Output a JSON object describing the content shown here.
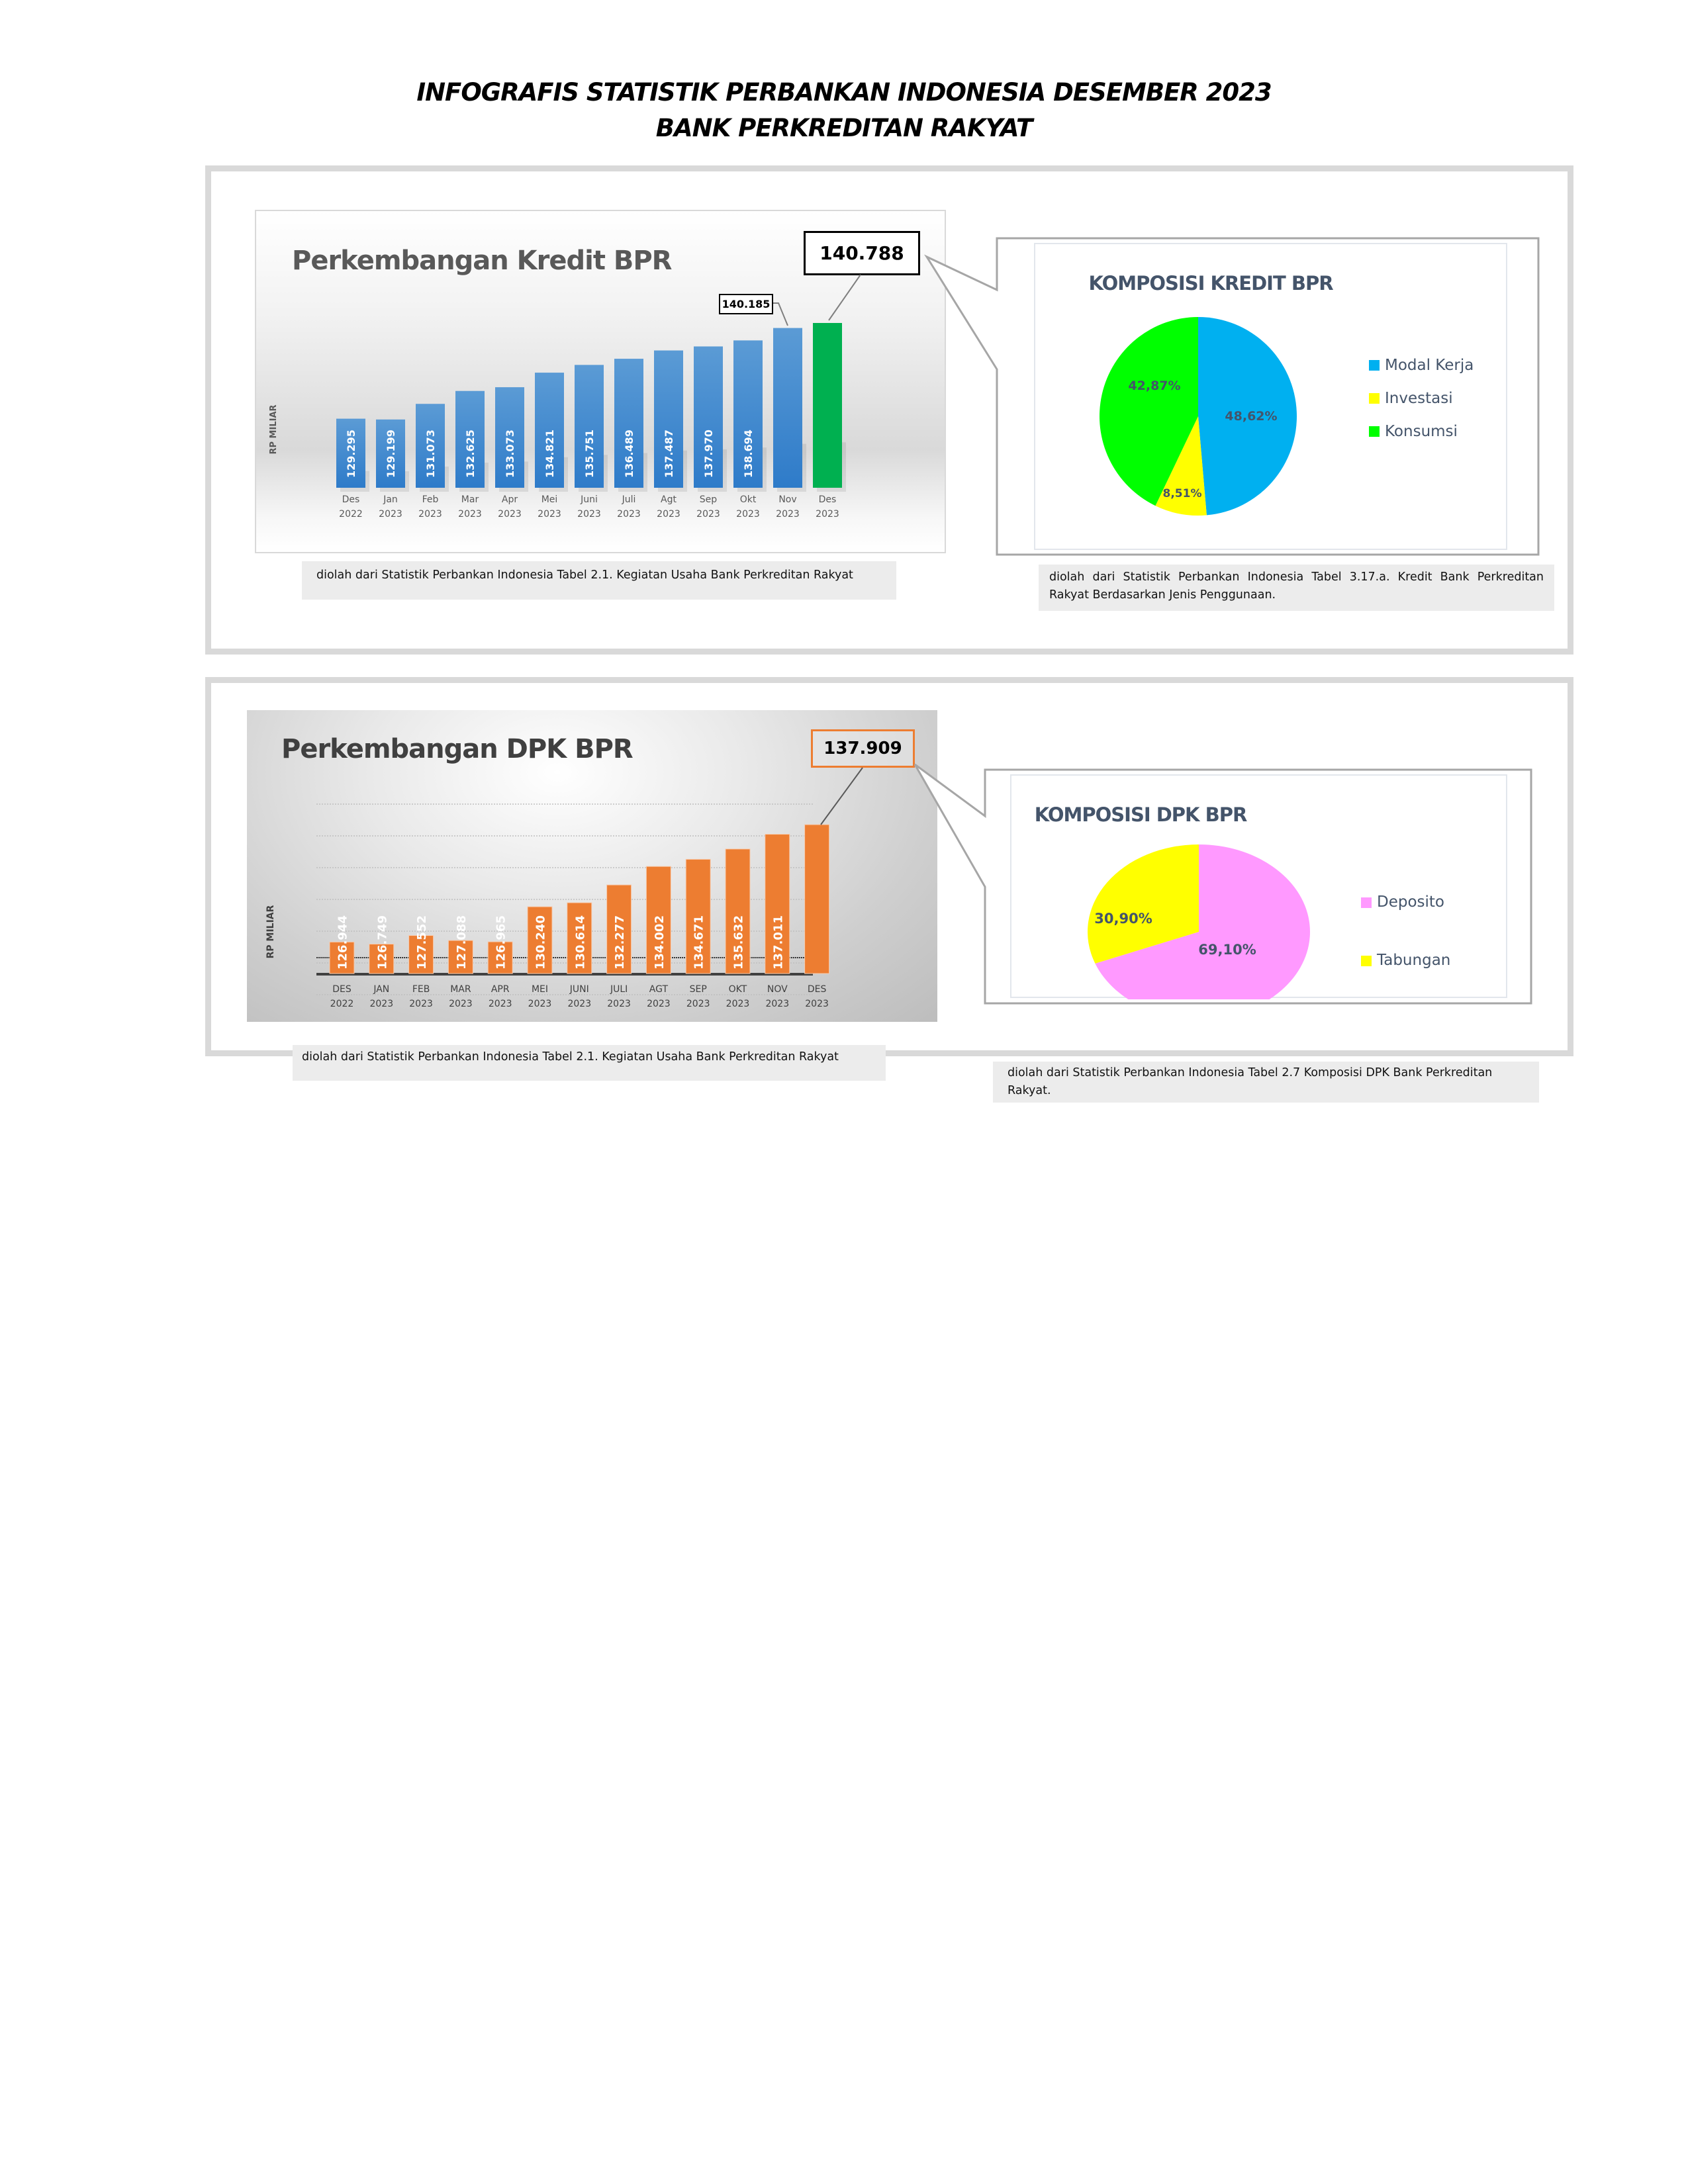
{
  "header": {
    "title_line1": "INFOGRAFIS STATISTIK PERBANKAN INDONESIA DESEMBER 2023",
    "title_line2": "BANK PERKREDITAN RAKYAT"
  },
  "kredit_panel": {
    "bar_chart": {
      "title": "Perkembangan Kredit BPR",
      "ylabel": "RP MILIAR",
      "highlight_value": "140.788",
      "prev_value": "140.185",
      "caption": "diolah dari Statistik Perbankan Indonesia Tabel 2.1. Kegiatan Usaha Bank Perkreditan Rakyat",
      "colors": {
        "bar": "#4a8ad4",
        "highlight": "#00b050"
      }
    },
    "pie_chart": {
      "title": "KOMPOSISI KREDIT BPR",
      "legend": [
        {
          "label": "Modal Kerja",
          "color": "#00b0f0",
          "pct": "48,62%"
        },
        {
          "label": "Investasi",
          "color": "#ffff00",
          "pct": "8,51%"
        },
        {
          "label": "Konsumsi",
          "color": "#00ff00",
          "pct": "42,87%"
        }
      ],
      "caption": "diolah dari Statistik Perbankan Indonesia Tabel 3.17.a. Kredit Bank Perkreditan Rakyat Berdasarkan Jenis Penggunaan."
    }
  },
  "dpk_panel": {
    "bar_chart": {
      "title": "Perkembangan DPK BPR",
      "ylabel": "RP MILIAR",
      "highlight_value": "137.909",
      "caption": "diolah dari Statistik Perbankan Indonesia Tabel 2.1. Kegiatan Usaha Bank Perkreditan Rakyat",
      "colors": {
        "bar": "#ed7d31"
      }
    },
    "pie_chart": {
      "title": "KOMPOSISI DPK BPR",
      "legend": [
        {
          "label": "Deposito",
          "color": "#ff99ff",
          "pct": "69,10%"
        },
        {
          "label": "Tabungan",
          "color": "#ffff00",
          "pct": "30,90%"
        }
      ],
      "caption": "diolah dari Statistik Perbankan Indonesia Tabel 2.7 Komposisi DPK Bank Perkreditan Rakyat."
    }
  },
  "chart_data": [
    {
      "type": "bar",
      "title": "Perkembangan Kredit BPR",
      "xlabel": "",
      "ylabel": "RP MILIAR",
      "categories": [
        "Des 2022",
        "Jan 2023",
        "Feb 2023",
        "Mar 2023",
        "Apr 2023",
        "Mei 2023",
        "Juni 2023",
        "Juli 2023",
        "Agt 2023",
        "Sep 2023",
        "Okt 2023",
        "Nov 2023",
        "Des 2023"
      ],
      "cat_line1": [
        "Des",
        "Jan",
        "Feb",
        "Mar",
        "Apr",
        "Mei",
        "Juni",
        "Juli",
        "Agt",
        "Sep",
        "Okt",
        "Nov",
        "Des"
      ],
      "cat_line2": [
        "2022",
        "2023",
        "2023",
        "2023",
        "2023",
        "2023",
        "2023",
        "2023",
        "2023",
        "2023",
        "2023",
        "2023",
        "2023"
      ],
      "values": [
        129295,
        129199,
        131073,
        132625,
        133073,
        134821,
        135751,
        136489,
        137487,
        137970,
        138694,
        140185,
        140788
      ],
      "value_labels": [
        "129.295",
        "129.199",
        "131.073",
        "132.625",
        "133.073",
        "134.821",
        "135.751",
        "136.489",
        "137.487",
        "137.970",
        "138.694",
        "140.185",
        "140.788"
      ],
      "grid": false,
      "legend": "none"
    },
    {
      "type": "pie",
      "title": "KOMPOSISI KREDIT BPR",
      "categories": [
        "Modal Kerja",
        "Investasi",
        "Konsumsi"
      ],
      "values": [
        48.62,
        8.51,
        42.87
      ],
      "legend_position": "right"
    },
    {
      "type": "bar",
      "title": "Perkembangan DPK BPR",
      "xlabel": "",
      "ylabel": "RP MILIAR",
      "categories": [
        "DES 2022",
        "JAN 2023",
        "FEB 2023",
        "MAR 2023",
        "APR 2023",
        "MEI 2023",
        "JUNI 2023",
        "JULI 2023",
        "AGT 2023",
        "SEP 2023",
        "OKT 2023",
        "NOV 2023",
        "DES 2023"
      ],
      "cat_line1": [
        "DES",
        "JAN",
        "FEB",
        "MAR",
        "APR",
        "MEI",
        "JUNI",
        "JULI",
        "AGT",
        "SEP",
        "OKT",
        "NOV",
        "DES"
      ],
      "cat_line2": [
        "2022",
        "2023",
        "2023",
        "2023",
        "2023",
        "2023",
        "2023",
        "2023",
        "2023",
        "2023",
        "2023",
        "2023",
        "2023"
      ],
      "values": [
        126944,
        126749,
        127552,
        127088,
        126965,
        130240,
        130614,
        132277,
        134002,
        134671,
        135632,
        137011,
        137909
      ],
      "value_labels": [
        "126.944",
        "126.749",
        "127.552",
        "127.088",
        "126.965",
        "130.240",
        "130.614",
        "132.277",
        "134.002",
        "134.671",
        "135.632",
        "137.011",
        "137.909"
      ],
      "grid": true,
      "legend": "none"
    },
    {
      "type": "pie",
      "title": "KOMPOSISI DPK BPR",
      "categories": [
        "Deposito",
        "Tabungan"
      ],
      "values": [
        69.1,
        30.9
      ],
      "legend_position": "right"
    }
  ]
}
